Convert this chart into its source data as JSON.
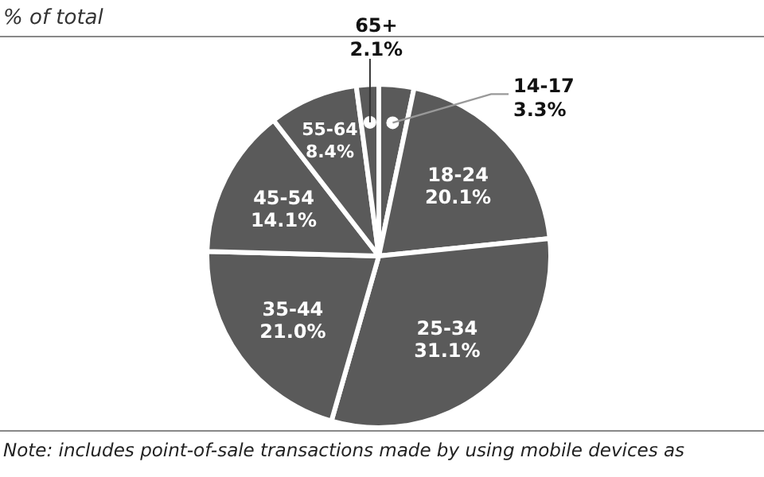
{
  "chart_data": {
    "type": "pie",
    "title": "% of total",
    "categories": [
      "14-17",
      "18-24",
      "25-34",
      "35-44",
      "45-54",
      "55-64",
      "65+"
    ],
    "values": [
      3.3,
      20.1,
      31.1,
      21.0,
      14.1,
      8.4,
      2.1
    ],
    "value_labels": [
      "3.3%",
      "20.1%",
      "31.1%",
      "21.0%",
      "14.1%",
      "8.4%",
      "2.1%"
    ],
    "colors": [
      "#5a5a5a",
      "#5a5a5a",
      "#5a5a5a",
      "#5a5a5a",
      "#5a5a5a",
      "#5a5a5a",
      "#5a5a5a"
    ],
    "annotations": [
      "Note: includes point-of-sale transactions made by using mobile devices as"
    ]
  }
}
